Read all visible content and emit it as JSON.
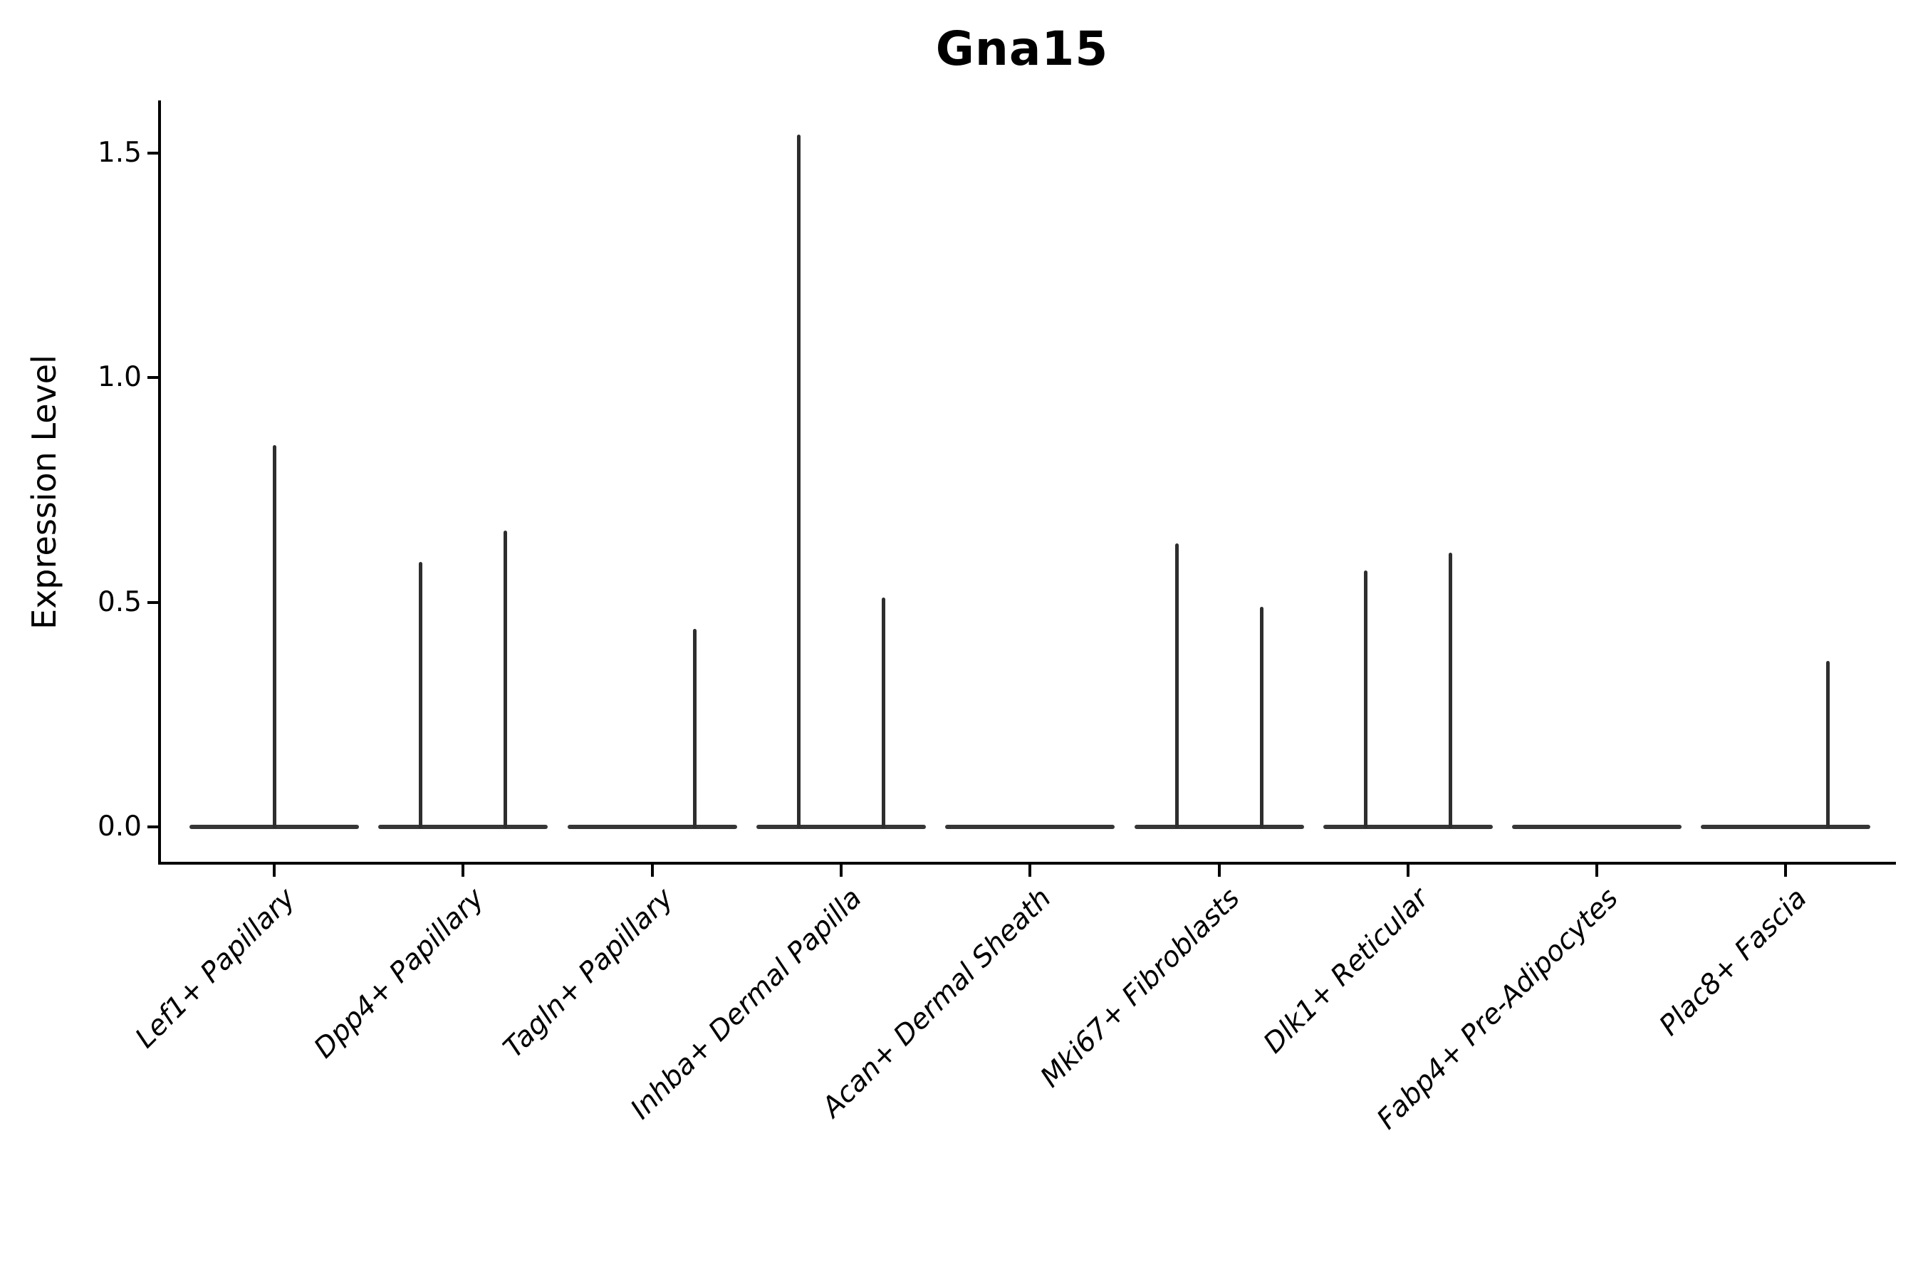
{
  "chart_data": {
    "type": "violin",
    "title": "Gna15",
    "ylabel": "Expression Level",
    "xlabel": "",
    "grid": false,
    "legend_position": "none",
    "ylim": [
      -0.08,
      1.62
    ],
    "yticks": [
      {
        "value": 0.0,
        "label": "0.0"
      },
      {
        "value": 0.5,
        "label": "0.5"
      },
      {
        "value": 1.0,
        "label": "1.0"
      },
      {
        "value": 1.5,
        "label": "1.5"
      }
    ],
    "categories": [
      "Lef1+ Papillary",
      "Dpp4+ Papillary",
      "Tagln+ Papillary",
      "Inhba+ Dermal Papilla",
      "Acan+ Dermal Sheath",
      "Mki67+ Fibroblasts",
      "Dlk1+ Reticular",
      "Fabp4+ Pre-Adipocytes",
      "Plac8+ Fascia"
    ],
    "series": [
      {
        "category": "Lef1+ Papillary",
        "baseline": 0.0,
        "spikes": [
          {
            "slot": "center",
            "peak": 0.85
          }
        ]
      },
      {
        "category": "Dpp4+ Papillary",
        "baseline": 0.0,
        "spikes": [
          {
            "slot": "left",
            "peak": 0.59
          },
          {
            "slot": "right",
            "peak": 0.66
          }
        ]
      },
      {
        "category": "Tagln+ Papillary",
        "baseline": 0.0,
        "spikes": [
          {
            "slot": "right",
            "peak": 0.44
          }
        ]
      },
      {
        "category": "Inhba+ Dermal Papilla",
        "baseline": 0.0,
        "spikes": [
          {
            "slot": "left",
            "peak": 1.54
          },
          {
            "slot": "right",
            "peak": 0.51
          }
        ]
      },
      {
        "category": "Acan+ Dermal Sheath",
        "baseline": 0.0,
        "spikes": []
      },
      {
        "category": "Mki67+ Fibroblasts",
        "baseline": 0.0,
        "spikes": [
          {
            "slot": "left",
            "peak": 0.63
          },
          {
            "slot": "right",
            "peak": 0.49
          }
        ]
      },
      {
        "category": "Dlk1+ Reticular",
        "baseline": 0.0,
        "spikes": [
          {
            "slot": "left",
            "peak": 0.57
          },
          {
            "slot": "right",
            "peak": 0.61
          }
        ]
      },
      {
        "category": "Fabp4+ Pre-Adipocytes",
        "baseline": 0.0,
        "spikes": []
      },
      {
        "category": "Plac8+ Fascia",
        "baseline": 0.0,
        "spikes": [
          {
            "slot": "right",
            "peak": 0.37
          }
        ]
      }
    ],
    "colors": {
      "violin": "#2e2e2e",
      "violin_base": "#363636",
      "axis": "#000000",
      "text": "#000000",
      "background": "#ffffff"
    }
  }
}
